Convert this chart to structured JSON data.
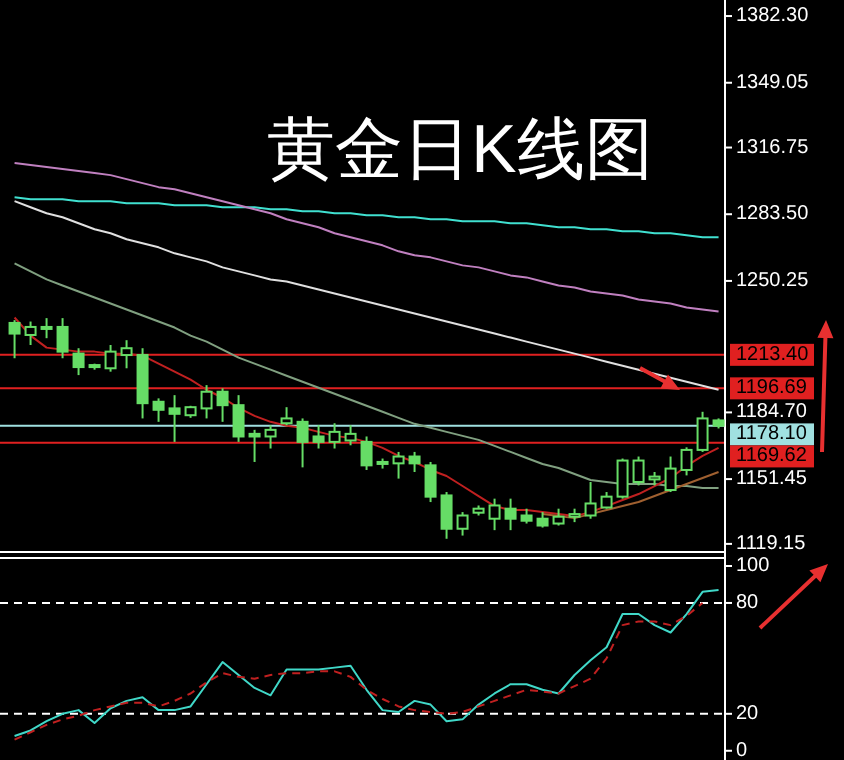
{
  "chart_data": [
    {
      "type": "candlestick",
      "title": "黄金日K线图",
      "categories": [
        null,
        null,
        null,
        null,
        null,
        null,
        null,
        null,
        null,
        null,
        null,
        null,
        null,
        null,
        null,
        null,
        null,
        null,
        null,
        null,
        null,
        null,
        null,
        null,
        null,
        null,
        null,
        null,
        null,
        null,
        null,
        null,
        null,
        null,
        null,
        null,
        null,
        null,
        null,
        null,
        null,
        null,
        null,
        null,
        null
      ],
      "color": "#66dd66",
      "ohlc": [
        [
          1229.3,
          1230.7,
          1211.7,
          1224
        ],
        [
          1223.3,
          1230,
          1218.3,
          1227.3
        ],
        [
          1227.3,
          1231.7,
          1221.7,
          1226.7
        ],
        [
          1227.3,
          1231.7,
          1211.7,
          1215
        ],
        [
          1214,
          1216.7,
          1203.3,
          1207.3
        ],
        [
          1208.3,
          1209,
          1206,
          1207.3
        ],
        [
          1206.7,
          1218.3,
          1205,
          1215
        ],
        [
          1213.3,
          1220.7,
          1206.7,
          1216.7
        ],
        [
          1213.3,
          1216.7,
          1181.7,
          1189.3
        ],
        [
          1190,
          1191.7,
          1180,
          1186
        ],
        [
          1186.7,
          1193.3,
          1170,
          1184
        ],
        [
          1183.3,
          1188,
          1182,
          1187.3
        ],
        [
          1186.7,
          1198.3,
          1181.7,
          1195
        ],
        [
          1195,
          1196.7,
          1180,
          1188.3
        ],
        [
          1188.3,
          1193.3,
          1170,
          1172.7
        ],
        [
          1174,
          1176,
          1160,
          1172.7
        ],
        [
          1172.7,
          1178.3,
          1166.7,
          1176
        ],
        [
          1179.3,
          1187.3,
          1178.3,
          1181.7
        ],
        [
          1180,
          1181.7,
          1157.3,
          1170
        ],
        [
          1172.7,
          1178.3,
          1166.7,
          1170
        ],
        [
          1170,
          1179.3,
          1166.7,
          1175
        ],
        [
          1170.7,
          1178.3,
          1168.3,
          1174
        ],
        [
          1170,
          1172.7,
          1156,
          1158.3
        ],
        [
          1160,
          1161.7,
          1156.7,
          1159.3
        ],
        [
          1159.3,
          1165,
          1151.7,
          1162.7
        ],
        [
          1162.7,
          1165,
          1155,
          1159.3
        ],
        [
          1158.3,
          1160,
          1140,
          1142.7
        ],
        [
          1143.3,
          1145,
          1121.7,
          1126.7
        ],
        [
          1126.7,
          1135,
          1123.3,
          1133.3
        ],
        [
          1134.7,
          1138.3,
          1133.3,
          1136.7
        ],
        [
          1131.7,
          1141.7,
          1126,
          1138.3
        ],
        [
          1136.7,
          1141.7,
          1126,
          1131.7
        ],
        [
          1133.3,
          1136.7,
          1129.3,
          1130.7
        ],
        [
          1131.7,
          1135,
          1127.3,
          1128.3
        ],
        [
          1129.3,
          1136.7,
          1128.3,
          1132.7
        ],
        [
          1132.7,
          1136.7,
          1130,
          1134
        ],
        [
          1133.3,
          1150,
          1131.7,
          1139.3
        ],
        [
          1137.3,
          1145,
          1136.7,
          1142.7
        ],
        [
          1142.7,
          1161.7,
          1141.7,
          1160.7
        ],
        [
          1150,
          1162.7,
          1148.3,
          1160.7
        ],
        [
          1151.3,
          1155,
          1148.3,
          1152.7
        ],
        [
          1146,
          1162.7,
          1145,
          1156.7
        ],
        [
          1156,
          1167.3,
          1153.3,
          1166
        ],
        [
          1166,
          1185,
          1165,
          1181.7
        ],
        [
          1180.7,
          1181.7,
          1176.7,
          1178.1
        ]
      ],
      "series": [
        {
          "type": "line",
          "color": "#40e0d0",
          "values": [
            1292,
            1291,
            1291,
            1291,
            1290,
            1290,
            1290,
            1289,
            1289,
            1289,
            1288,
            1288,
            1288,
            1287,
            1287,
            1287,
            1286,
            1286,
            1285,
            1285,
            1284,
            1284,
            1283,
            1283,
            1282,
            1282,
            1281,
            1281,
            1280,
            1280,
            1280,
            1279,
            1279,
            1278,
            1277,
            1277,
            1276,
            1276,
            1275,
            1275,
            1274,
            1274,
            1273,
            1272,
            1272
          ]
        },
        {
          "type": "line",
          "color": "#c080c0",
          "values": [
            1309,
            1308,
            1307,
            1306,
            1305,
            1304,
            1303,
            1301,
            1299,
            1297,
            1296,
            1294,
            1292,
            1290,
            1288,
            1286,
            1284,
            1281,
            1279,
            1277,
            1274,
            1272,
            1270,
            1268,
            1265,
            1263,
            1262,
            1260,
            1258,
            1257,
            1255,
            1253,
            1252,
            1250,
            1248,
            1247,
            1245,
            1244,
            1243,
            1241,
            1240,
            1239,
            1237,
            1236,
            1235
          ]
        },
        {
          "type": "line",
          "color": "#e0e0e0",
          "values": [
            1290,
            1287,
            1284,
            1282,
            1279,
            1276,
            1274,
            1271,
            1269,
            1267,
            1264,
            1262,
            1260,
            1257,
            1255,
            1253,
            1251,
            1250,
            1248,
            1246,
            1244,
            1242,
            1240,
            1238,
            1236,
            1234,
            1232,
            1230,
            1228,
            1226,
            1224,
            1222,
            1220,
            1218,
            1216,
            1214,
            1212,
            1210,
            1208,
            1206,
            1204,
            1202,
            1200,
            1198,
            1196
          ]
        },
        {
          "type": "line",
          "color": "#80a080",
          "values": [
            1259,
            1255,
            1251,
            1248,
            1245,
            1242,
            1239,
            1236,
            1233,
            1230,
            1227,
            1223,
            1220,
            1216,
            1212,
            1209,
            1206,
            1203,
            1200,
            1197,
            1194,
            1191,
            1188,
            1185,
            1182,
            1179,
            1177,
            1175,
            1173,
            1171,
            1168,
            1165,
            1162,
            1159,
            1157,
            1154,
            1151,
            1150,
            1149,
            1149,
            1149,
            1148,
            1148,
            1147,
            1147
          ]
        },
        {
          "type": "line",
          "color": "#c02020",
          "values": [
            1232,
            1223,
            1217,
            1216,
            1215,
            1215,
            1214,
            1214,
            1213,
            1209,
            1205,
            1201,
            1196,
            1192,
            1187,
            1183,
            1180,
            1178,
            1177,
            1175,
            1173,
            1172,
            1170,
            1167,
            1163,
            1160,
            1156,
            1153,
            1148,
            1143,
            1138,
            1136,
            1136,
            1135,
            1134,
            1133,
            1135,
            1138,
            1141,
            1144,
            1148,
            1152,
            1158,
            1163,
            1167
          ]
        },
        {
          "type": "line",
          "color": "#a06030",
          "values": [
            null,
            null,
            null,
            null,
            null,
            null,
            null,
            null,
            null,
            null,
            null,
            null,
            null,
            null,
            null,
            null,
            null,
            null,
            null,
            null,
            null,
            null,
            null,
            null,
            null,
            null,
            null,
            null,
            null,
            null,
            null,
            null,
            null,
            1134,
            1133,
            1132,
            1134,
            1136,
            1138,
            1140,
            1143,
            1146,
            1149,
            1152,
            1155
          ]
        }
      ],
      "ylim": [
        1117.1,
        1390.3
      ],
      "yticks": [
        {
          "value": 1382.3,
          "label": "1382.30"
        },
        {
          "value": 1349.05,
          "label": "1349.05"
        },
        {
          "value": 1316.75,
          "label": "1316.75"
        },
        {
          "value": 1283.5,
          "label": "1283.50"
        },
        {
          "value": 1250.25,
          "label": "1250.25"
        },
        {
          "value": 1184.7,
          "label": "1184.70"
        },
        {
          "value": 1151.45,
          "label": "1151.45"
        },
        {
          "value": 1119.15,
          "label": "1119.15"
        }
      ],
      "ref_lines": [
        {
          "axis": "y",
          "value": 1213.4,
          "label": "1213.40",
          "color": "#e02020"
        },
        {
          "axis": "y",
          "value": 1196.69,
          "label": "1196.69",
          "color": "#e02020"
        },
        {
          "axis": "y",
          "value": 1178.1,
          "label": "1178.10",
          "color": "#a0e0e0"
        },
        {
          "axis": "y",
          "value": 1169.62,
          "label": "1169.62",
          "color": "#e02020"
        }
      ],
      "tick_labels": "y"
    },
    {
      "type": "line",
      "categories": [
        null,
        null,
        null,
        null,
        null,
        null,
        null,
        null,
        null,
        null,
        null,
        null,
        null,
        null,
        null,
        null,
        null,
        null,
        null,
        null,
        null,
        null,
        null,
        null,
        null,
        null,
        null,
        null,
        null,
        null,
        null,
        null,
        null,
        null,
        null,
        null,
        null,
        null,
        null,
        null,
        null,
        null,
        null,
        null,
        null
      ],
      "ylim": [
        -5,
        100
      ],
      "yticks": [
        0,
        20,
        80,
        100
      ],
      "tick_labels": "y",
      "ref_lines": [
        {
          "axis": "y",
          "value": 80,
          "color": "#ffffff",
          "line_style": "dashed"
        },
        {
          "axis": "y",
          "value": 20,
          "color": "#ffffff",
          "line_style": "dashed"
        }
      ],
      "series": [
        {
          "color": "#40d8c8",
          "line_style": "solid",
          "values": [
            8,
            11,
            16,
            20,
            22,
            15,
            23,
            27,
            29,
            22,
            22,
            24,
            36,
            48,
            41,
            34,
            30,
            44,
            44,
            44,
            45,
            46,
            33,
            22,
            21,
            27,
            25,
            16,
            17,
            25,
            31,
            36,
            36,
            33,
            31,
            41,
            49,
            56,
            74,
            74,
            68,
            64,
            74,
            86,
            87
          ]
        },
        {
          "color": "#c02020",
          "line_style": "dashed",
          "values": [
            6,
            10,
            14,
            17,
            19,
            22,
            24,
            26,
            26,
            24,
            27,
            31,
            37,
            42,
            40,
            39,
            41,
            42,
            42,
            43,
            43,
            40,
            33,
            28,
            24,
            22,
            21,
            20,
            21,
            24,
            27,
            30,
            33,
            32,
            31,
            35,
            39,
            50,
            68,
            70,
            70,
            68,
            73,
            80,
            null
          ]
        }
      ]
    }
  ]
}
